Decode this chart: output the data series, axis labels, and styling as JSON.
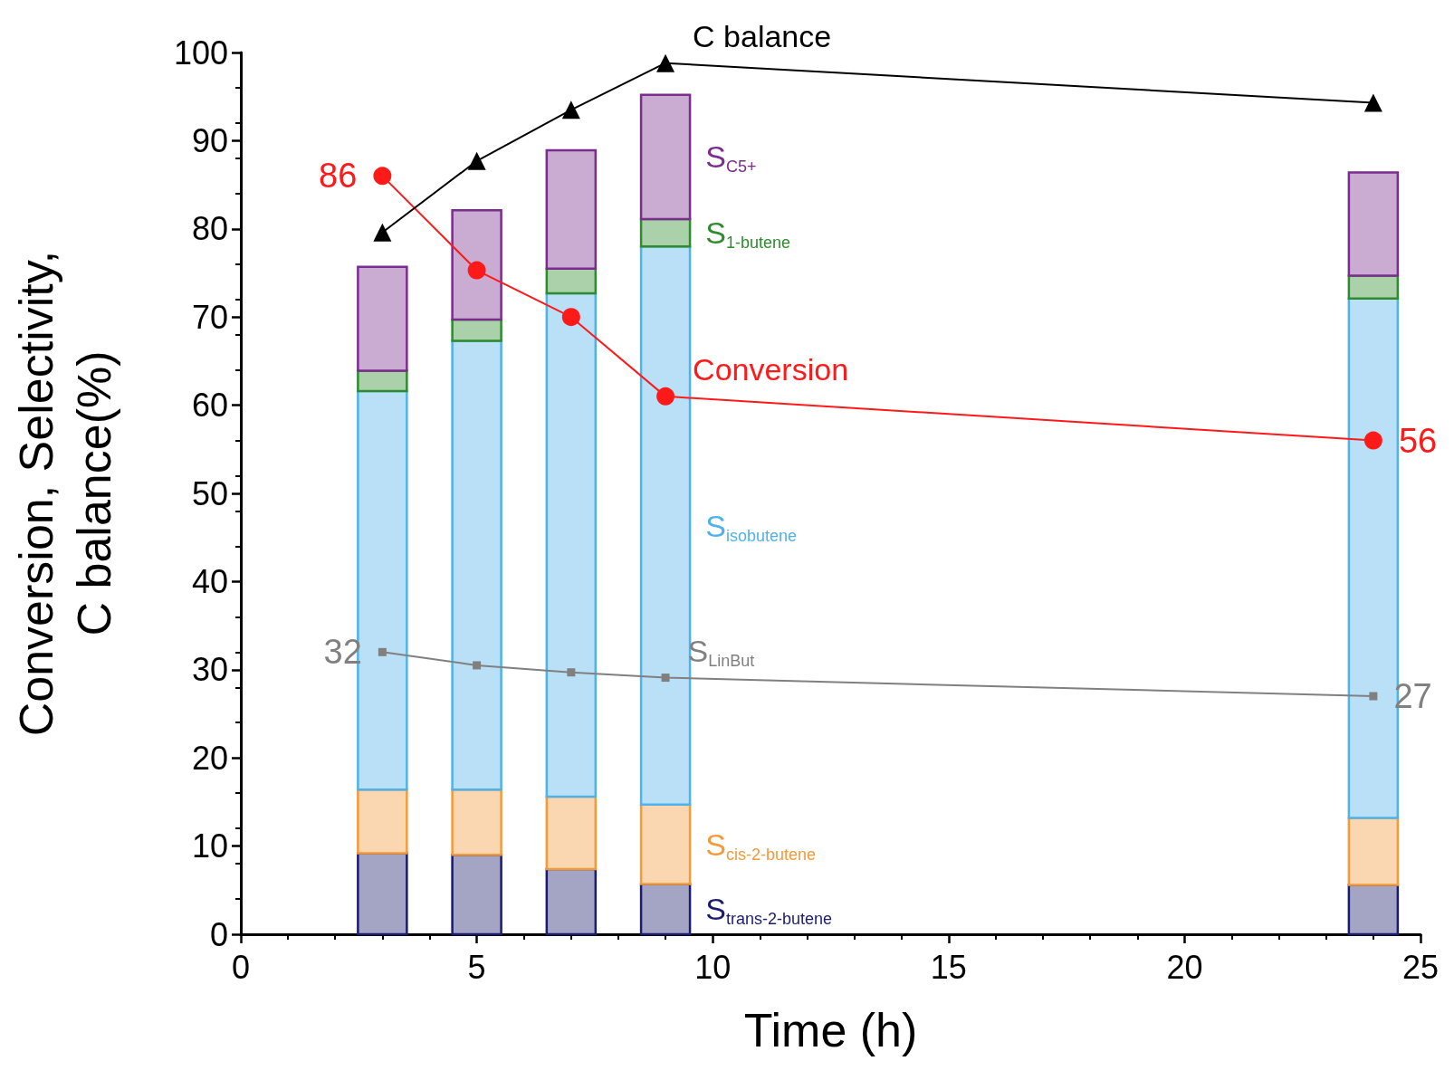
{
  "chart_data": {
    "type": "bar",
    "stacked": true,
    "xlabel": "Time (h)",
    "ylabel": "Conversion, Selectivity,\nC balance(%)",
    "x": [
      3,
      5,
      7,
      9,
      24
    ],
    "xlim": [
      0,
      25
    ],
    "xticks": [
      0,
      5,
      10,
      15,
      20,
      25
    ],
    "ylim": [
      0,
      100
    ],
    "yticks": [
      0,
      10,
      20,
      30,
      40,
      50,
      60,
      70,
      80,
      90,
      100
    ],
    "series": [
      {
        "name": "S$_{trans-2-butene}$",
        "color": "#1c1c6e",
        "values": [
          9.2,
          9.0,
          7.4,
          5.7,
          5.6
        ]
      },
      {
        "name": "S$_{cis-2-butene}$",
        "color": "#f39a3c",
        "values": [
          7.2,
          7.4,
          8.2,
          9.0,
          7.6
        ]
      },
      {
        "name": "S$_{isobutene}$",
        "color": "#4fb2ea",
        "values": [
          45.2,
          50.9,
          57.1,
          63.3,
          58.9
        ]
      },
      {
        "name": "S$_{1-butene}$",
        "color": "#2e8b2e",
        "values": [
          2.3,
          2.4,
          2.8,
          3.1,
          2.6
        ]
      },
      {
        "name": "S$_{C5+}$",
        "color": "#7b2d8e",
        "values": [
          11.8,
          12.4,
          13.4,
          14.1,
          11.7
        ]
      },
      {
        "name": "Conversion",
        "type": "line",
        "color": "#ff1a1a",
        "marker": "circle",
        "values": [
          86,
          75.3,
          70.0,
          61.0,
          56
        ],
        "value_labels": [
          "86",
          null,
          null,
          null,
          "56"
        ]
      },
      {
        "name": "C balance",
        "type": "line",
        "color": "#000000",
        "marker": "triangle",
        "values": [
          79.6,
          87.7,
          93.5,
          98.8,
          94.3
        ]
      },
      {
        "name": "S$_{LinBut}$",
        "type": "line",
        "color": "#808080",
        "marker": "square",
        "values": [
          32,
          30.5,
          29.7,
          29.1,
          27
        ],
        "value_labels": [
          "32",
          null,
          null,
          null,
          "27"
        ]
      }
    ]
  }
}
